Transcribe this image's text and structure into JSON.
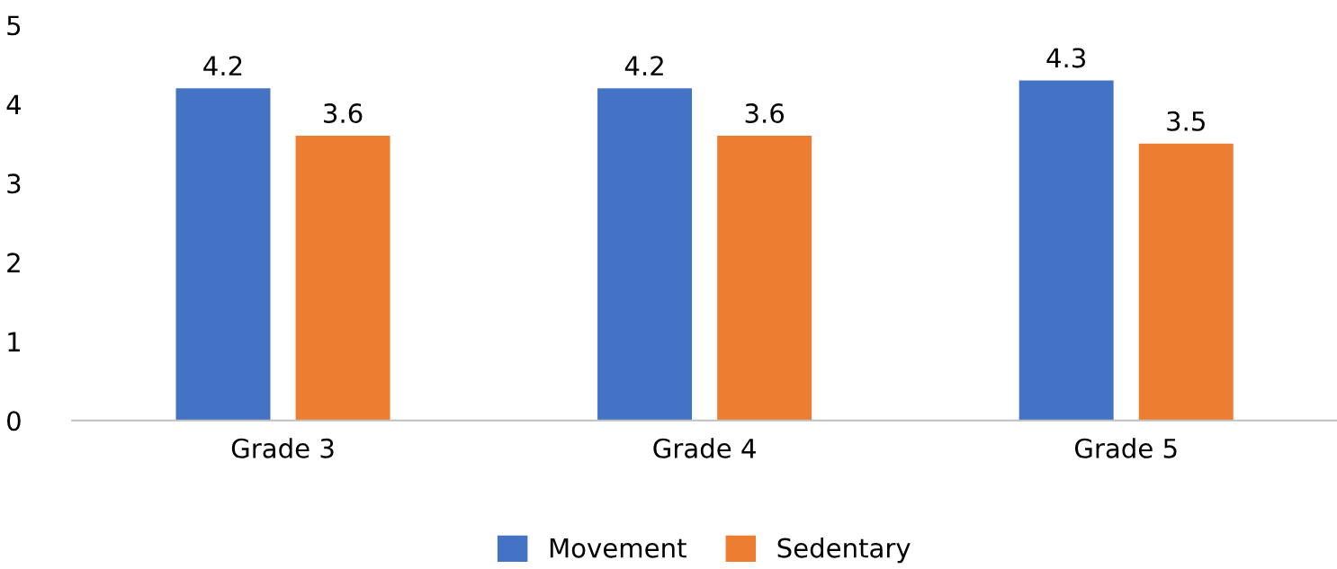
{
  "chart_data": {
    "type": "bar",
    "categories": [
      "Grade 3",
      "Grade 4",
      "Grade 5"
    ],
    "series": [
      {
        "name": "Movement",
        "color": "#4472c4",
        "values": [
          4.2,
          4.2,
          4.3
        ]
      },
      {
        "name": "Sedentary",
        "color": "#ed7d31",
        "values": [
          3.6,
          3.6,
          3.5
        ]
      }
    ],
    "ylim": [
      0,
      5
    ],
    "yticks": [
      0,
      1,
      2,
      3,
      4,
      5
    ],
    "grid": false,
    "legend": "bottom",
    "data_labels": true
  }
}
